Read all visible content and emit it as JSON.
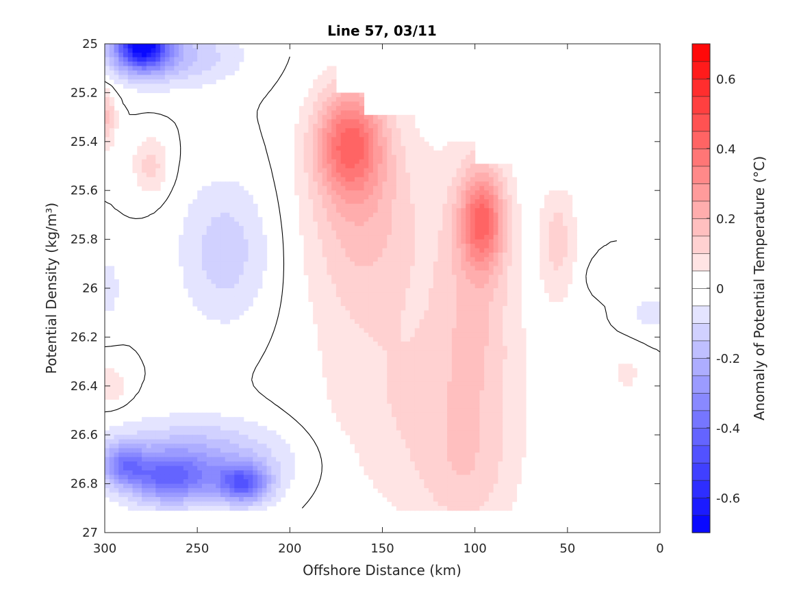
{
  "chart_data": {
    "type": "contour",
    "title": "Line 57, 03/11",
    "xlabel": "Offshore Distance (km)",
    "ylabel": "Potential Density (kg/m³)",
    "colorbar_label": "Anomaly of Potential Temperature (°C)",
    "xlim": [
      300,
      0
    ],
    "x_reversed": true,
    "ylim": [
      25,
      27
    ],
    "y_reversed": true,
    "x_ticks": [
      300,
      250,
      200,
      150,
      100,
      50,
      0
    ],
    "y_ticks": [
      25,
      25.2,
      25.4,
      25.6,
      25.8,
      26,
      26.2,
      26.4,
      26.6,
      26.8,
      27
    ],
    "colorbar_range": [
      -0.7,
      0.7
    ],
    "colorbar_ticks": [
      0.6,
      0.4,
      0.2,
      0,
      -0.2,
      -0.4,
      -0.6
    ],
    "contour_interval": 0.05,
    "zero_contour": "black line",
    "colormap": [
      "#0000ff",
      "#ffffff",
      "#ff0000"
    ],
    "grid": false,
    "regions": [
      {
        "label": "cold anomaly near surface",
        "x": [
          300,
          270
        ],
        "y": [
          25.0,
          25.1
        ],
        "min_value": -0.6
      },
      {
        "label": "deep cold anomaly",
        "x": [
          300,
          200
        ],
        "y": [
          26.55,
          26.9
        ],
        "min_value": -0.4
      },
      {
        "label": "mid-depth cold patch",
        "x": [
          270,
          210
        ],
        "y": [
          25.6,
          26.2
        ],
        "min_value": -0.15
      },
      {
        "label": "warm core A",
        "x": [
          180,
          150
        ],
        "y": [
          25.3,
          25.6
        ],
        "max_value": 0.35
      },
      {
        "label": "warm core B",
        "x": [
          100,
          90
        ],
        "y": [
          25.65,
          25.8
        ],
        "max_value": 0.35
      },
      {
        "label": "broad warm anomaly",
        "x": [
          200,
          40
        ],
        "y": [
          25.1,
          26.9
        ],
        "max_value": 0.25
      }
    ]
  }
}
